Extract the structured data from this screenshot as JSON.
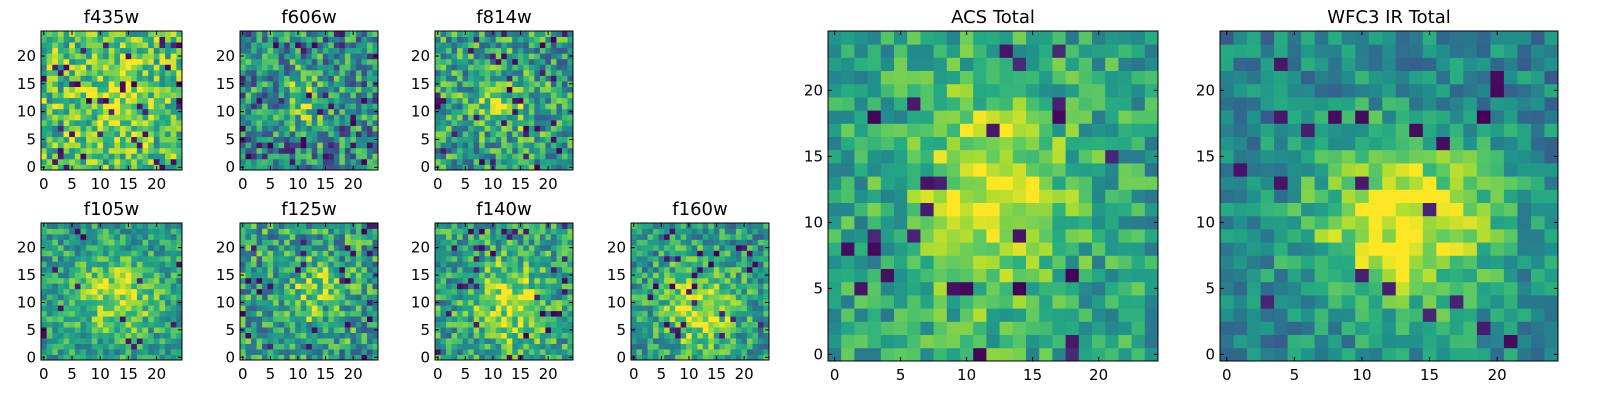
{
  "figure": {
    "colormap": [
      "#440154",
      "#3b528b",
      "#21918c",
      "#5ec962",
      "#a0da39",
      "#fde725"
    ],
    "pixel_grid": "25x25"
  },
  "chart_data": [
    {
      "type": "heatmap",
      "title": "f435w",
      "colormap": "viridis",
      "xticks": [
        0,
        5,
        10,
        15,
        20
      ],
      "yticks": [
        0,
        5,
        10,
        15,
        20
      ],
      "xlim": [
        -0.5,
        24.5
      ],
      "ylim": [
        -0.5,
        24.5
      ],
      "appearance": "bright noisy green-yellow field with scattered dark pixels"
    },
    {
      "type": "heatmap",
      "title": "f606w",
      "colormap": "viridis",
      "xticks": [
        0,
        5,
        10,
        15,
        20
      ],
      "yticks": [
        0,
        5,
        10,
        15,
        20
      ],
      "xlim": [
        -0.5,
        24.5
      ],
      "ylim": [
        -0.5,
        24.5
      ],
      "appearance": "noisy field with faint bright source near center"
    },
    {
      "type": "heatmap",
      "title": "f814w",
      "colormap": "viridis",
      "xticks": [
        0,
        5,
        10,
        15,
        20
      ],
      "yticks": [
        0,
        5,
        10,
        15,
        20
      ],
      "xlim": [
        -0.5,
        24.5
      ],
      "ylim": [
        -0.5,
        24.5
      ],
      "appearance": "noisy field with faint bright source near center"
    },
    {
      "type": "heatmap",
      "title": "f105w",
      "colormap": "viridis",
      "xticks": [
        0,
        5,
        10,
        15,
        20
      ],
      "yticks": [
        0,
        5,
        10,
        15,
        20
      ],
      "xlim": [
        -0.5,
        24.5
      ],
      "ylim": [
        -0.5,
        24.5
      ],
      "appearance": "bright source near center"
    },
    {
      "type": "heatmap",
      "title": "f125w",
      "colormap": "viridis",
      "xticks": [
        0,
        5,
        10,
        15,
        20
      ],
      "yticks": [
        0,
        5,
        10,
        15,
        20
      ],
      "xlim": [
        -0.5,
        24.5
      ],
      "ylim": [
        -0.5,
        24.5
      ],
      "appearance": "noisy field with faint central source"
    },
    {
      "type": "heatmap",
      "title": "f140w",
      "colormap": "viridis",
      "xticks": [
        0,
        5,
        10,
        15,
        20
      ],
      "yticks": [
        0,
        5,
        10,
        15,
        20
      ],
      "xlim": [
        -0.5,
        24.5
      ],
      "ylim": [
        -0.5,
        24.5
      ],
      "appearance": "bright central source"
    },
    {
      "type": "heatmap",
      "title": "f160w",
      "colormap": "viridis",
      "xticks": [
        0,
        5,
        10,
        15,
        20
      ],
      "yticks": [
        0,
        5,
        10,
        15,
        20
      ],
      "xlim": [
        -0.5,
        24.5
      ],
      "ylim": [
        -0.5,
        24.5
      ],
      "appearance": "bright central source"
    },
    {
      "type": "heatmap",
      "title": "ACS Total",
      "colormap": "viridis",
      "xticks": [
        0,
        5,
        10,
        15,
        20
      ],
      "yticks": [
        0,
        5,
        10,
        15,
        20
      ],
      "xlim": [
        -0.5,
        24.5
      ],
      "ylim": [
        -0.5,
        24.5
      ],
      "appearance": "bright elongated source centered near x=12, y=12"
    },
    {
      "type": "heatmap",
      "title": "WFC3 IR Total",
      "colormap": "viridis",
      "xticks": [
        0,
        5,
        10,
        15,
        20
      ],
      "yticks": [
        0,
        5,
        10,
        15,
        20
      ],
      "xlim": [
        -0.5,
        24.5
      ],
      "ylim": [
        -0.5,
        24.5
      ],
      "appearance": "bright extended source centered near x=13, y=11"
    }
  ]
}
